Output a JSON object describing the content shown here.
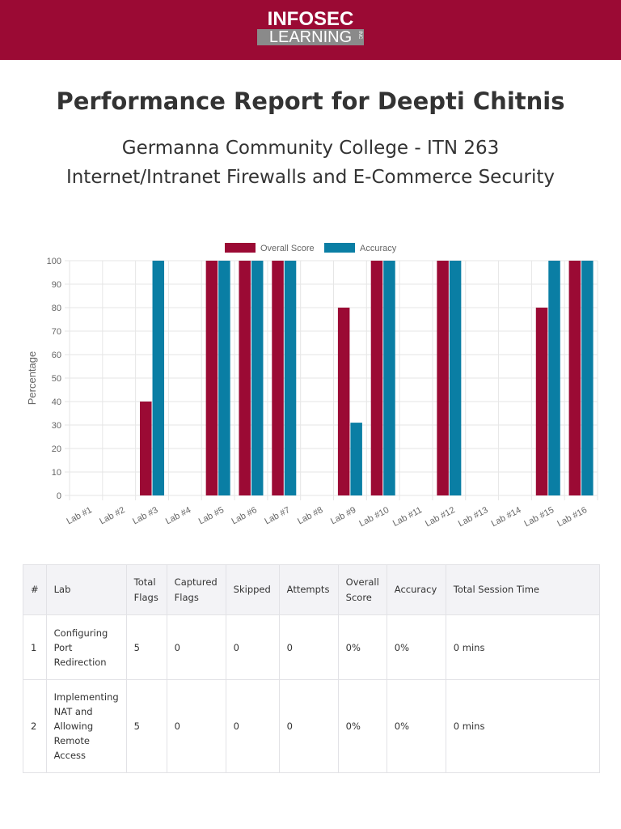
{
  "header": {
    "logo_top": "INFOSEC",
    "logo_bottom": "LEARNING",
    "logo_inc": "INC",
    "brand_color": "#9b0a34"
  },
  "report": {
    "title": "Performance Report for Deepti Chitnis",
    "subtitle1": "Germanna Community College - ITN 263",
    "subtitle2": "Internet/Intranet Firewalls and E-Commerce Security"
  },
  "chart_data": {
    "type": "bar",
    "categories": [
      "Lab #1",
      "Lab #2",
      "Lab #3",
      "Lab #4",
      "Lab #5",
      "Lab #6",
      "Lab #7",
      "Lab #8",
      "Lab #9",
      "Lab #10",
      "Lab #11",
      "Lab #12",
      "Lab #13",
      "Lab #14",
      "Lab #15",
      "Lab #16"
    ],
    "series": [
      {
        "name": "Overall Score",
        "color": "#9b0a34",
        "values": [
          0,
          0,
          40,
          0,
          100,
          100,
          100,
          0,
          80,
          100,
          0,
          100,
          0,
          0,
          80,
          100
        ]
      },
      {
        "name": "Accuracy",
        "color": "#0a7ea4",
        "values": [
          0,
          0,
          100,
          0,
          100,
          100,
          100,
          0,
          31,
          100,
          0,
          100,
          0,
          0,
          100,
          100
        ]
      }
    ],
    "ylabel": "Percentage",
    "xlabel": "",
    "ylim": [
      0,
      100
    ],
    "yticks": [
      "0",
      "10",
      "20",
      "30",
      "40",
      "50",
      "60",
      "70",
      "80",
      "90",
      "100"
    ],
    "legend": "top-center",
    "grid": true
  },
  "table": {
    "headers": [
      "#",
      "Lab",
      "Total Flags",
      "Captured Flags",
      "Skipped",
      "Attempts",
      "Overall Score",
      "Accuracy",
      "Total Session Time"
    ],
    "rows": [
      [
        "1",
        "Configuring Port Redirection",
        "5",
        "0",
        "0",
        "0",
        "0%",
        "0%",
        "0 mins"
      ],
      [
        "2",
        "Implementing NAT and Allowing Remote Access",
        "5",
        "0",
        "0",
        "0",
        "0%",
        "0%",
        "0 mins"
      ]
    ]
  }
}
